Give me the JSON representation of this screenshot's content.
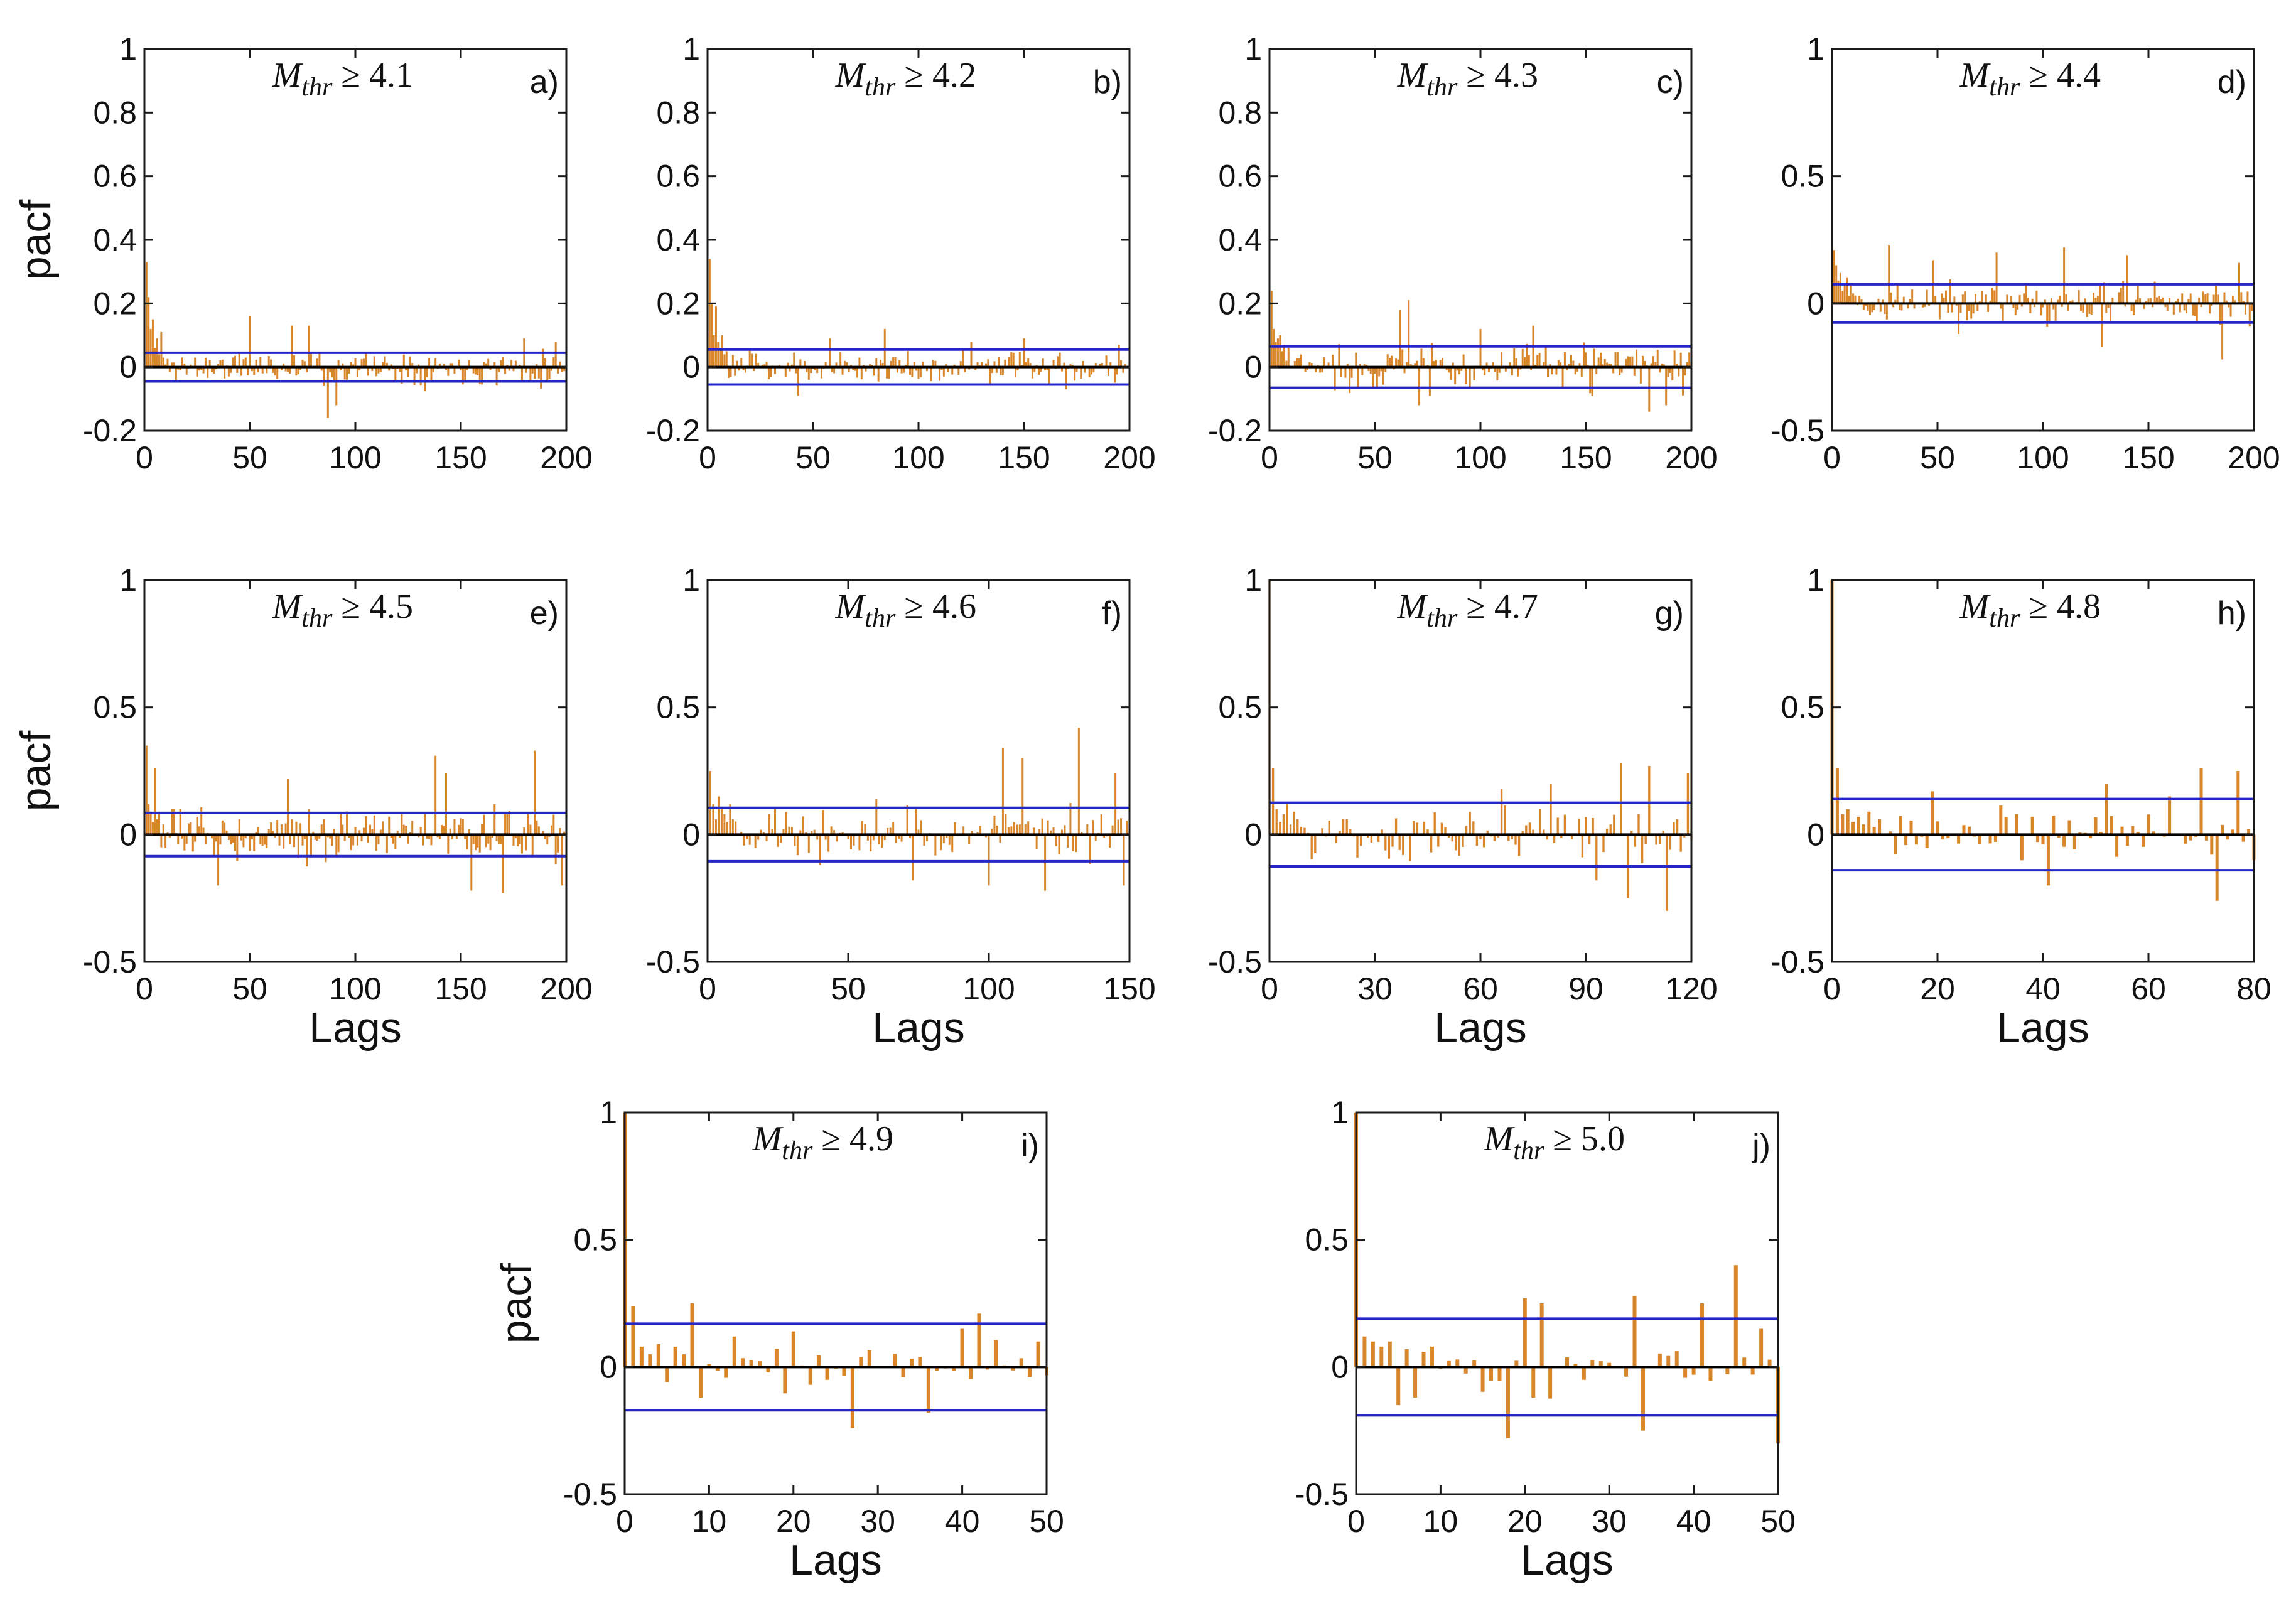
{
  "colors": {
    "stem": "#d9862a",
    "conf": "#2626c8",
    "zero": "#000000",
    "axis": "#1a1a1a"
  },
  "chart_data": [
    {
      "type": "bar",
      "id": "a",
      "panel_label": "a)",
      "title_var": "M",
      "title_sub": "thr",
      "title_rest": " ≥ 4.1",
      "xlabel": "",
      "ylabel": "pacf",
      "xlim": [
        0,
        200
      ],
      "ylim": [
        -0.2,
        1
      ],
      "xticks": [
        0,
        50,
        100,
        150,
        200
      ],
      "yticks": [
        -0.2,
        0,
        0.2,
        0.4,
        0.6,
        0.8,
        1
      ],
      "ytick_labels": [
        "-0.2",
        "0",
        "0.2",
        "0.4",
        "0.6",
        "0.8",
        "1"
      ],
      "conf": 0.045,
      "n_lags": 200,
      "seed": 11,
      "amp": 0.05,
      "first_lags": [
        1,
        0.33,
        0.22,
        0.12,
        0.15,
        0.06,
        0.09,
        0.04,
        0.11,
        0.03
      ],
      "peaks": [
        [
          50,
          0.16
        ],
        [
          87,
          -0.16
        ],
        [
          91,
          -0.12
        ],
        [
          70,
          0.13
        ],
        [
          78,
          0.13
        ],
        [
          180,
          0.09
        ],
        [
          195,
          0.08
        ]
      ]
    },
    {
      "type": "bar",
      "id": "b",
      "panel_label": "b)",
      "title_var": "M",
      "title_sub": "thr",
      "title_rest": " ≥ 4.2",
      "xlabel": "",
      "ylabel": "",
      "xlim": [
        0,
        200
      ],
      "ylim": [
        -0.2,
        1
      ],
      "xticks": [
        0,
        50,
        100,
        150,
        200
      ],
      "yticks": [
        -0.2,
        0,
        0.2,
        0.4,
        0.6,
        0.8,
        1
      ],
      "ytick_labels": [
        "-0.2",
        "0",
        "0.2",
        "0.4",
        "0.6",
        "0.8",
        "1"
      ],
      "conf": 0.055,
      "n_lags": 200,
      "seed": 23,
      "amp": 0.045,
      "first_lags": [
        1,
        0.34,
        0.2,
        0.1,
        0.19,
        0.08,
        0.06,
        0.1,
        0.04,
        0.05
      ],
      "peaks": [
        [
          43,
          -0.09
        ],
        [
          58,
          0.09
        ],
        [
          84,
          0.12
        ],
        [
          125,
          0.08
        ],
        [
          150,
          0.09
        ],
        [
          170,
          -0.07
        ],
        [
          195,
          0.07
        ]
      ]
    },
    {
      "type": "bar",
      "id": "c",
      "panel_label": "c)",
      "title_var": "M",
      "title_sub": "thr",
      "title_rest": " ≥ 4.3",
      "xlabel": "",
      "ylabel": "",
      "xlim": [
        0,
        200
      ],
      "ylim": [
        -0.2,
        1
      ],
      "xticks": [
        0,
        50,
        100,
        150,
        200
      ],
      "yticks": [
        -0.2,
        0,
        0.2,
        0.4,
        0.6,
        0.8,
        1
      ],
      "ytick_labels": [
        "-0.2",
        "0",
        "0.2",
        "0.4",
        "0.6",
        "0.8",
        "1"
      ],
      "conf": 0.065,
      "n_lags": 200,
      "seed": 37,
      "amp": 0.065,
      "first_lags": [
        1,
        0.24,
        0.12,
        0.08,
        0.09,
        0.1,
        0.05,
        0.07,
        0.02,
        0.06
      ],
      "peaks": [
        [
          66,
          0.21
        ],
        [
          62,
          0.18
        ],
        [
          71,
          -0.12
        ],
        [
          100,
          0.12
        ],
        [
          125,
          0.13
        ],
        [
          180,
          -0.14
        ],
        [
          188,
          -0.12
        ]
      ]
    },
    {
      "type": "bar",
      "id": "d",
      "panel_label": "d)",
      "title_var": "M",
      "title_sub": "thr",
      "title_rest": " ≥ 4.4",
      "xlabel": "",
      "ylabel": "",
      "xlim": [
        0,
        200
      ],
      "ylim": [
        -0.5,
        1
      ],
      "xticks": [
        0,
        50,
        100,
        150,
        200
      ],
      "yticks": [
        -0.5,
        0,
        0.5,
        1
      ],
      "ytick_labels": [
        "-0.5",
        "0",
        "0.5",
        "1"
      ],
      "conf": 0.075,
      "n_lags": 200,
      "seed": 41,
      "amp": 0.075,
      "first_lags": [
        1,
        0.21,
        0.15,
        0.09,
        0.12,
        0.05,
        0.08,
        0.1,
        0.03,
        0.07
      ],
      "peaks": [
        [
          27,
          0.23
        ],
        [
          48,
          0.17
        ],
        [
          60,
          -0.12
        ],
        [
          78,
          0.2
        ],
        [
          110,
          0.22
        ],
        [
          128,
          -0.17
        ],
        [
          140,
          0.19
        ],
        [
          185,
          -0.22
        ],
        [
          193,
          0.16
        ]
      ]
    },
    {
      "type": "bar",
      "id": "e",
      "panel_label": "e)",
      "title_var": "M",
      "title_sub": "thr",
      "title_rest": " ≥ 4.5",
      "xlabel": "Lags",
      "ylabel": "pacf",
      "xlim": [
        0,
        200
      ],
      "ylim": [
        -0.5,
        1
      ],
      "xticks": [
        0,
        50,
        100,
        150,
        200
      ],
      "yticks": [
        -0.5,
        0,
        0.5,
        1
      ],
      "ytick_labels": [
        "-0.5",
        "0",
        "0.5",
        "1"
      ],
      "conf": 0.085,
      "n_lags": 200,
      "seed": 53,
      "amp": 0.09,
      "first_lags": [
        1,
        0.35,
        0.12,
        0.08,
        0.05,
        0.26,
        0.06,
        0.09,
        -0.05,
        0.04
      ],
      "peaks": [
        [
          35,
          -0.2
        ],
        [
          68,
          0.22
        ],
        [
          138,
          0.31
        ],
        [
          155,
          -0.22
        ],
        [
          170,
          -0.23
        ],
        [
          185,
          0.33
        ],
        [
          198,
          -0.2
        ],
        [
          143,
          0.24
        ]
      ]
    },
    {
      "type": "bar",
      "id": "f",
      "panel_label": "f)",
      "title_var": "M",
      "title_sub": "thr",
      "title_rest": " ≥ 4.6",
      "xlabel": "Lags",
      "ylabel": "",
      "xlim": [
        0,
        150
      ],
      "ylim": [
        -0.5,
        1
      ],
      "xticks": [
        0,
        50,
        100,
        150
      ],
      "yticks": [
        -0.5,
        0,
        0.5,
        1
      ],
      "ytick_labels": [
        "-0.5",
        "0",
        "0.5",
        "1"
      ],
      "conf": 0.105,
      "n_lags": 150,
      "seed": 67,
      "amp": 0.1,
      "first_lags": [
        1,
        0.25,
        0.12,
        0.06,
        0.15,
        0.1,
        0.08,
        0.05,
        0.12,
        0.06
      ],
      "peaks": [
        [
          60,
          0.14
        ],
        [
          73,
          -0.18
        ],
        [
          100,
          -0.2
        ],
        [
          105,
          0.34
        ],
        [
          112,
          0.3
        ],
        [
          120,
          -0.22
        ],
        [
          132,
          0.42
        ],
        [
          145,
          0.24
        ],
        [
          148,
          -0.2
        ]
      ]
    },
    {
      "type": "bar",
      "id": "g",
      "panel_label": "g)",
      "title_var": "M",
      "title_sub": "thr",
      "title_rest": " ≥ 4.7",
      "xlabel": "Lags",
      "ylabel": "",
      "xlim": [
        0,
        120
      ],
      "ylim": [
        -0.5,
        1
      ],
      "xticks": [
        0,
        30,
        60,
        90,
        120
      ],
      "yticks": [
        -0.5,
        0,
        0.5,
        1
      ],
      "ytick_labels": [
        "-0.5",
        "0",
        "0.5",
        "1"
      ],
      "conf": 0.125,
      "n_lags": 120,
      "seed": 79,
      "amp": 0.09,
      "first_lags": [
        1,
        0.26,
        0.1,
        0.05,
        0.08,
        0.12,
        0.04,
        0.09,
        0.06,
        0.03
      ],
      "peaks": [
        [
          66,
          0.18
        ],
        [
          80,
          0.2
        ],
        [
          93,
          -0.18
        ],
        [
          100,
          0.28
        ],
        [
          102,
          -0.25
        ],
        [
          108,
          0.27
        ],
        [
          113,
          -0.3
        ],
        [
          119,
          0.24
        ]
      ]
    },
    {
      "type": "bar",
      "id": "h",
      "panel_label": "h)",
      "title_var": "M",
      "title_sub": "thr",
      "title_rest": " ≥ 4.8",
      "xlabel": "Lags",
      "ylabel": "",
      "xlim": [
        0,
        80
      ],
      "ylim": [
        -0.5,
        1
      ],
      "xticks": [
        0,
        20,
        40,
        60,
        80
      ],
      "yticks": [
        -0.5,
        0,
        0.5,
        1
      ],
      "ytick_labels": [
        "-0.5",
        "0",
        "0.5",
        "1"
      ],
      "conf": 0.14,
      "n_lags": 80,
      "seed": 83,
      "amp": 0.09,
      "first_lags": [
        1,
        0.26,
        0.08,
        0.1,
        0.05,
        0.07,
        0.04,
        0.09,
        0.03,
        0.06
      ],
      "peaks": [
        [
          19,
          0.17
        ],
        [
          41,
          -0.2
        ],
        [
          52,
          0.2
        ],
        [
          64,
          0.15
        ],
        [
          70,
          0.26
        ],
        [
          73,
          -0.26
        ],
        [
          77,
          0.25
        ],
        [
          80,
          -0.1
        ]
      ]
    },
    {
      "type": "bar",
      "id": "i",
      "panel_label": "i)",
      "title_var": "M",
      "title_sub": "thr",
      "title_rest": " ≥ 4.9",
      "xlabel": "Lags",
      "ylabel": "pacf",
      "xlim": [
        0,
        50
      ],
      "ylim": [
        -0.5,
        1
      ],
      "xticks": [
        0,
        10,
        20,
        30,
        40,
        50
      ],
      "yticks": [
        -0.5,
        0,
        0.5,
        1
      ],
      "ytick_labels": [
        "-0.5",
        "0",
        "0.5",
        "1"
      ],
      "conf": 0.17,
      "n_lags": 50,
      "seed": 97,
      "amp": 0.09,
      "first_lags": [
        1,
        0.24,
        0.08,
        0.05,
        0.09,
        -0.06,
        0.08,
        0.05,
        0.25,
        -0.12
      ],
      "peaks": [
        [
          27,
          -0.24
        ],
        [
          13,
          0.12
        ],
        [
          20,
          0.14
        ],
        [
          42,
          0.21
        ],
        [
          40,
          0.15
        ],
        [
          49,
          0.1
        ],
        [
          36,
          -0.18
        ]
      ]
    },
    {
      "type": "bar",
      "id": "j",
      "panel_label": "j)",
      "title_var": "M",
      "title_sub": "thr",
      "title_rest": " ≥ 5.0",
      "xlabel": "Lags",
      "ylabel": "",
      "xlim": [
        0,
        50
      ],
      "ylim": [
        -0.5,
        1
      ],
      "xticks": [
        0,
        10,
        20,
        30,
        40,
        50
      ],
      "yticks": [
        -0.5,
        0,
        0.5,
        1
      ],
      "ytick_labels": [
        "-0.5",
        "0",
        "0.5",
        "1"
      ],
      "conf": 0.19,
      "n_lags": 50,
      "seed": 101,
      "amp": 0.1,
      "first_lags": [
        1,
        0.12,
        0.1,
        0.08,
        0.1,
        -0.15,
        0.07,
        -0.12,
        0.06,
        0.08
      ],
      "peaks": [
        [
          18,
          -0.28
        ],
        [
          20,
          0.27
        ],
        [
          22,
          0.25
        ],
        [
          33,
          0.28
        ],
        [
          34,
          -0.25
        ],
        [
          41,
          0.25
        ],
        [
          45,
          0.4
        ],
        [
          48,
          0.15
        ],
        [
          50,
          -0.3
        ]
      ]
    }
  ]
}
